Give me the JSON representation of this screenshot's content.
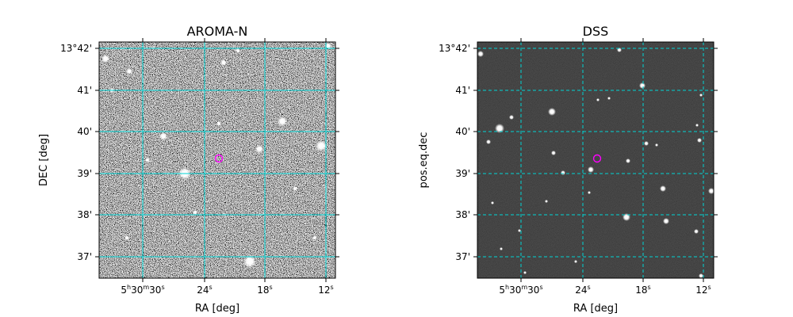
{
  "panels": [
    {
      "title": "AROMA-N",
      "xlabel": "RA [deg]",
      "ylabel": "DEC [deg]",
      "image": {
        "background": "#6e6e6e",
        "noise": "high",
        "seed": 7
      },
      "grid_color": "#00d4d4",
      "grid_style": "solid",
      "marker_color": "#ff00ff",
      "x_ticks": [
        {
          "h": "5",
          "hu": "h",
          "m": "30",
          "mu": "m",
          "s": "30",
          "su": "s"
        },
        {
          "s": "24",
          "su": "s"
        },
        {
          "s": "18",
          "su": "s"
        },
        {
          "s": "12",
          "su": "s"
        }
      ],
      "y_ticks": [
        "13°42'",
        "41'",
        "40'",
        "39'",
        "38'",
        "37'"
      ]
    },
    {
      "title": "DSS",
      "xlabel": "RA [deg]",
      "ylabel": "pos.eq.dec",
      "image": {
        "background": "#1a1a1a",
        "noise": "low",
        "seed": 21
      },
      "grid_color": "#00d4d4",
      "grid_style": "dashed",
      "marker_color": "#ff00ff",
      "x_ticks": [
        {
          "h": "5",
          "hu": "h",
          "m": "30",
          "mu": "m",
          "s": "30",
          "su": "s"
        },
        {
          "s": "24",
          "su": "s"
        },
        {
          "s": "18",
          "su": "s"
        },
        {
          "s": "12",
          "su": "s"
        }
      ],
      "y_ticks": [
        "13°42'",
        "41'",
        "40'",
        "39'",
        "38'",
        "37'"
      ]
    }
  ]
}
